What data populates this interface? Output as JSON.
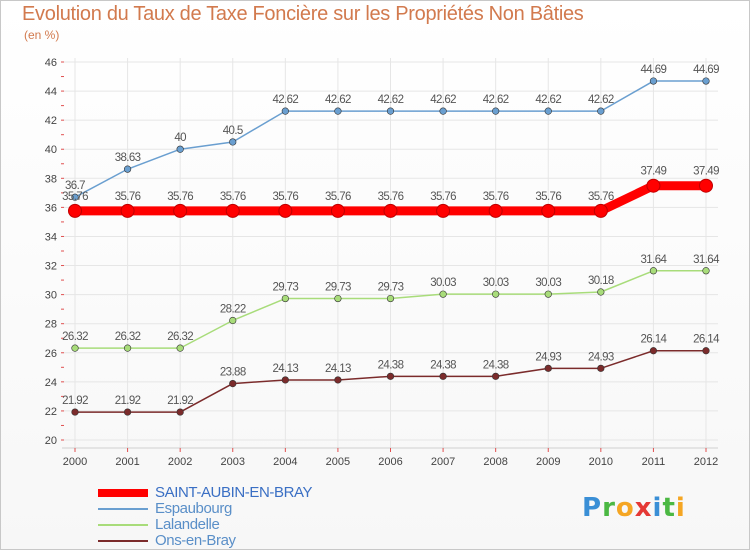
{
  "chart_data": {
    "type": "line",
    "title": "Evolution du Taux de Taxe Foncière sur les Propriétés Non Bâties",
    "subtitle": "(en %)",
    "categories": [
      "2000",
      "2001",
      "2002",
      "2003",
      "2004",
      "2005",
      "2006",
      "2007",
      "2008",
      "2009",
      "2010",
      "2011",
      "2012"
    ],
    "ylim": [
      20,
      46
    ],
    "yticks": [
      20,
      22,
      24,
      26,
      28,
      30,
      32,
      34,
      36,
      38,
      40,
      42,
      44,
      46
    ],
    "grid": true,
    "legend_position": "bottom-left",
    "series": [
      {
        "name": "SAINT-AUBIN-EN-BRAY",
        "color": "#ff0000",
        "labels": [
          "35.76",
          "35.76",
          "35.76",
          "35.76",
          "35.76",
          "35.76",
          "35.76",
          "35.76",
          "35.76",
          "35.76",
          "35.76",
          "37.49",
          "37.49"
        ],
        "values": [
          35.76,
          35.76,
          35.76,
          35.76,
          35.76,
          35.76,
          35.76,
          35.76,
          35.76,
          35.76,
          35.76,
          37.49,
          37.49
        ]
      },
      {
        "name": "Espaubourg",
        "color": "#6a9fd0",
        "labels": [
          "36.7",
          "38.63",
          "40",
          "40.5",
          "42.62",
          "42.62",
          "42.62",
          "42.62",
          "42.62",
          "42.62",
          "42.62",
          "44.69",
          "44.69"
        ],
        "values": [
          36.7,
          38.63,
          40,
          40.5,
          42.62,
          42.62,
          42.62,
          42.62,
          42.62,
          42.62,
          42.62,
          44.69,
          44.69
        ]
      },
      {
        "name": "Lalandelle",
        "color": "#a8dc7a",
        "labels": [
          "26.32",
          "26.32",
          "26.32",
          "28.22",
          "29.73",
          "29.73",
          "29.73",
          "30.03",
          "30.03",
          "30.03",
          "30.18",
          "31.64",
          "31.64"
        ],
        "values": [
          26.32,
          26.32,
          26.32,
          28.22,
          29.73,
          29.73,
          29.73,
          30.03,
          30.03,
          30.03,
          30.18,
          31.64,
          31.64
        ]
      },
      {
        "name": "Ons-en-Bray",
        "color": "#7b2b2b",
        "labels": [
          "21.92",
          "21.92",
          "21.92",
          "23.88",
          "24.13",
          "24.13",
          "24.38",
          "24.38",
          "24.38",
          "24.93",
          "24.93",
          "26.14",
          "26.14"
        ],
        "values": [
          21.92,
          21.92,
          21.92,
          23.88,
          24.13,
          24.13,
          24.38,
          24.38,
          24.38,
          24.93,
          24.93,
          26.14,
          26.14
        ]
      }
    ]
  },
  "logo": {
    "text": "Proxiti"
  }
}
